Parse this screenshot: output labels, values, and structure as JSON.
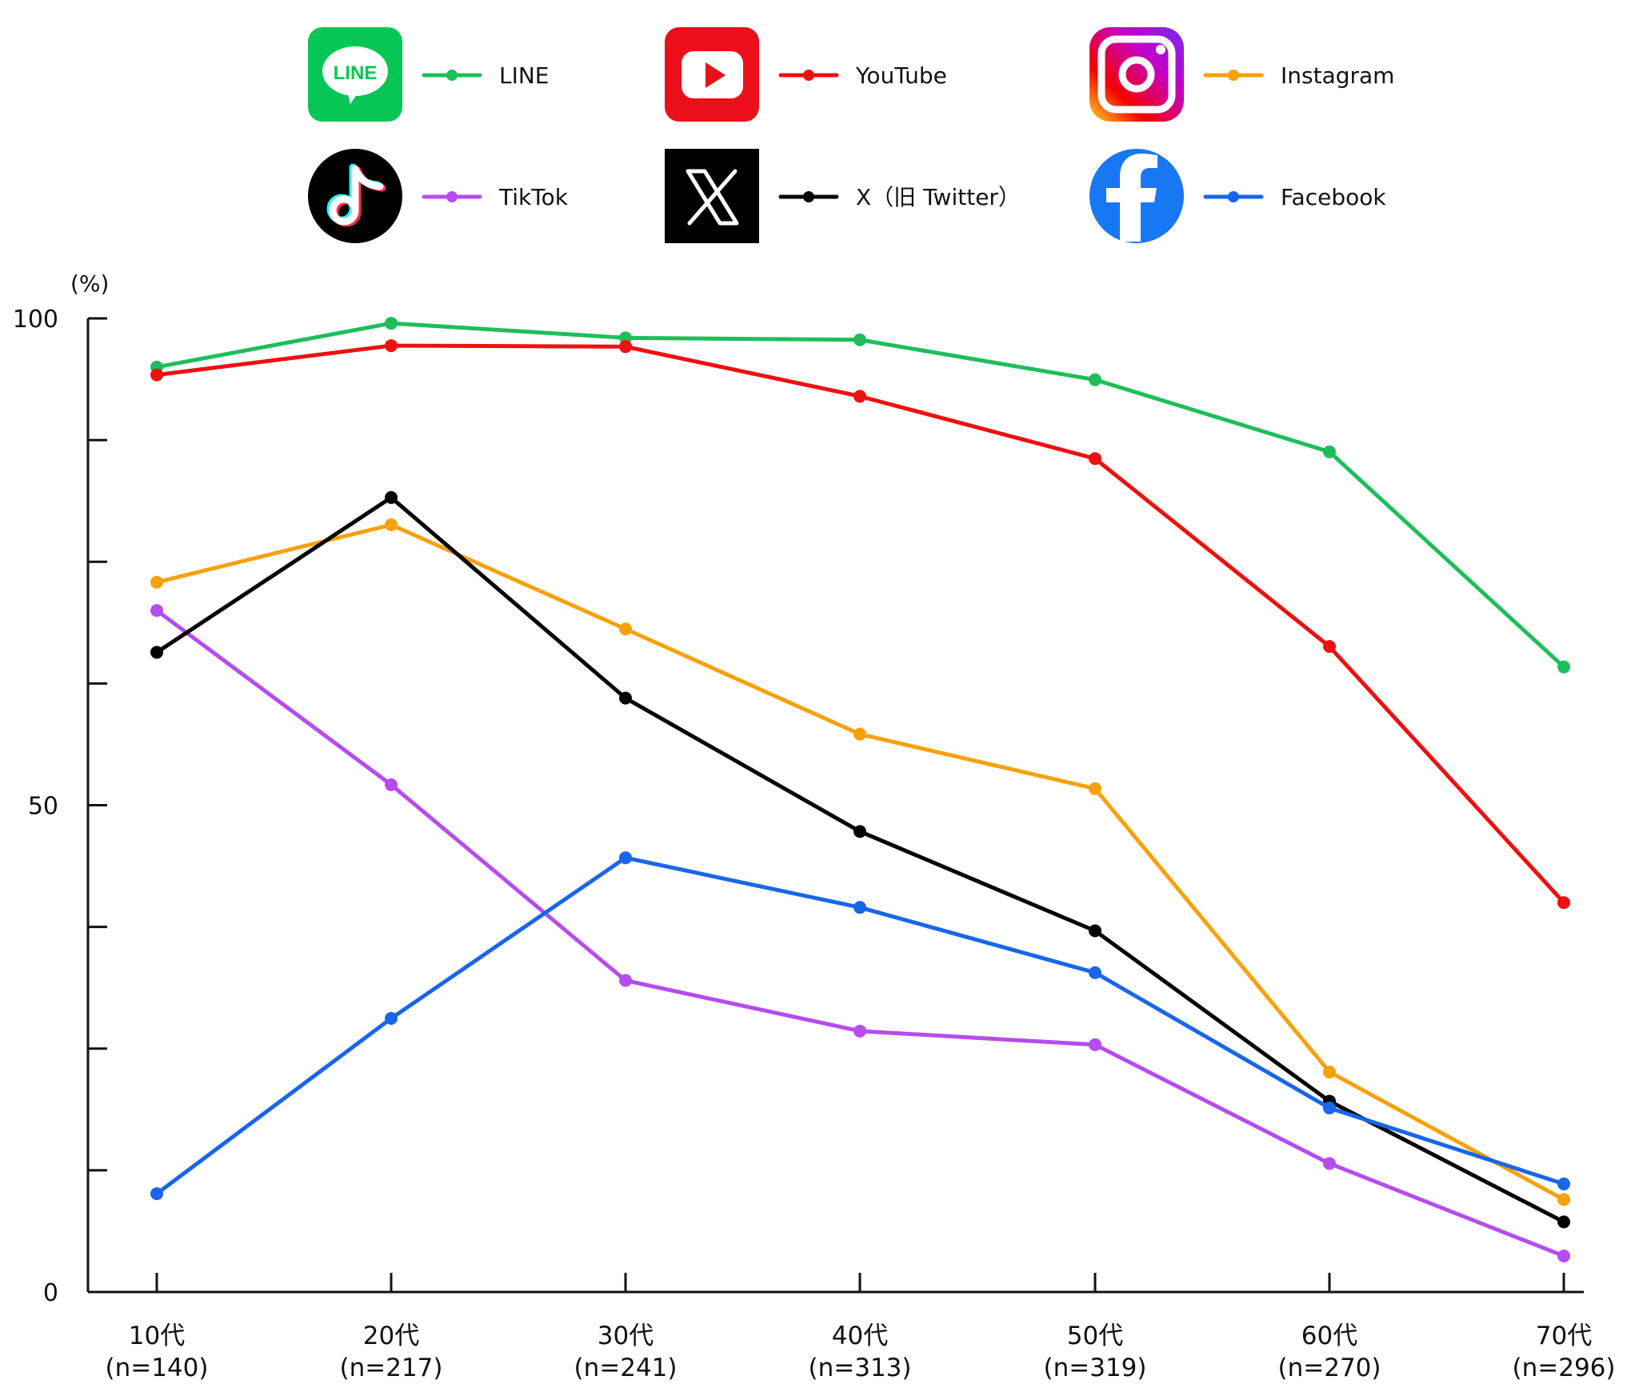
{
  "chart_data": {
    "type": "line",
    "title": "",
    "xlabel": "",
    "ylabel": "(%)",
    "ylim": [
      0,
      100
    ],
    "yticks": [
      0,
      50,
      100
    ],
    "categories": [
      "10代",
      "20代",
      "30代",
      "40代",
      "50代",
      "60代",
      "70代"
    ],
    "category_sublabels": [
      "(n=140)",
      "(n=217)",
      "(n=241)",
      "(n=313)",
      "(n=319)",
      "(n=270)",
      "(n=296)"
    ],
    "legend_position": "top",
    "legend_columns": 3,
    "grid": false,
    "series": [
      {
        "name": "LINE",
        "color": "#1ebe5a",
        "icon": "line-app-icon",
        "values": [
          95,
          99.5,
          98,
          97.8,
          93.7,
          86.3,
          64.2
        ]
      },
      {
        "name": "YouTube",
        "color": "#ef1010",
        "icon": "youtube-icon",
        "values": [
          94.2,
          97.2,
          97.1,
          92,
          85.6,
          66.3,
          40
        ]
      },
      {
        "name": "Instagram",
        "color": "#f8a10b",
        "icon": "instagram-icon",
        "values": [
          72.9,
          78.8,
          68.1,
          57.3,
          51.7,
          22.6,
          9.5
        ]
      },
      {
        "name": "TikTok",
        "color": "#b64cf0",
        "icon": "tiktok-icon",
        "values": [
          70,
          52.1,
          32,
          26.8,
          25.4,
          13.2,
          3.7
        ]
      },
      {
        "name": "X（旧 Twitter）",
        "color": "#050505",
        "icon": "x-twitter-icon",
        "values": [
          65.7,
          81.6,
          61,
          47.3,
          37.1,
          19.6,
          7.2
        ]
      },
      {
        "name": "Facebook",
        "color": "#1866ea",
        "icon": "facebook-icon",
        "values": [
          10.1,
          28.1,
          44.6,
          39.5,
          32.8,
          18.9,
          11.1
        ]
      }
    ]
  },
  "colors": {
    "axis": "#111111",
    "line_app": "#06c755",
    "youtube": "#ea0f1a",
    "facebook": "#1877f2",
    "black": "#000000"
  }
}
